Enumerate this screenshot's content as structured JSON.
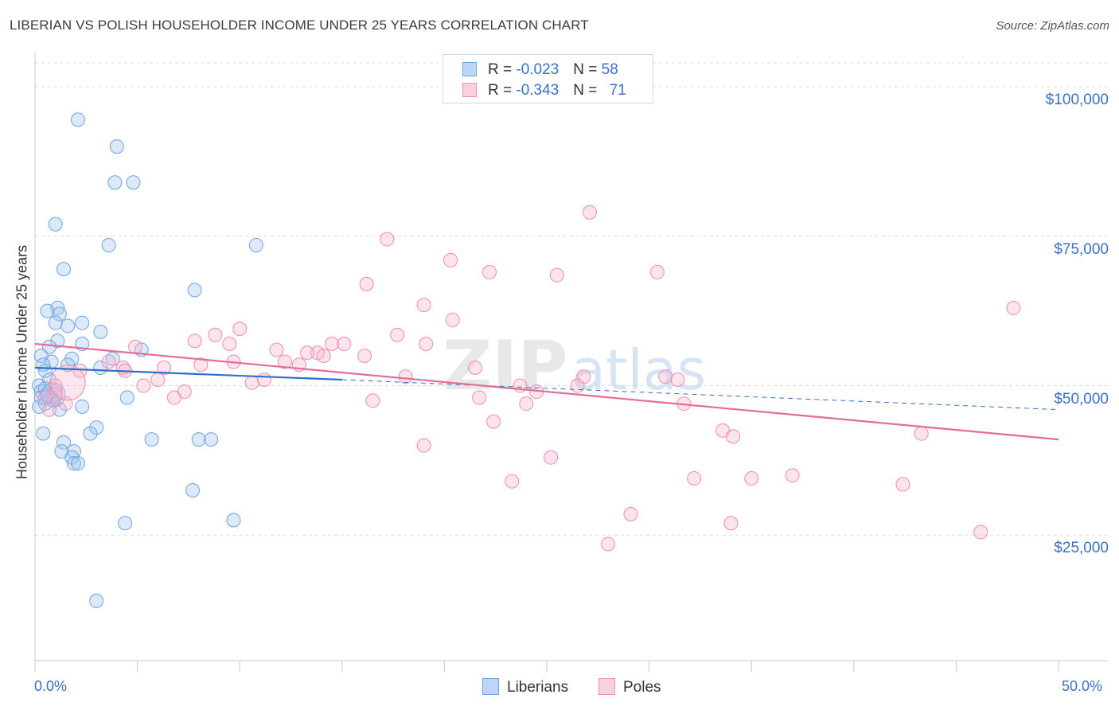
{
  "title": "LIBERIAN VS POLISH HOUSEHOLDER INCOME UNDER 25 YEARS CORRELATION CHART",
  "source": "Source: ZipAtlas.com",
  "watermark": {
    "zip": "ZIP",
    "atlas": "atlas"
  },
  "legend": {
    "row1": {
      "r_label": "R = ",
      "r_value": "-0.023",
      "n_label": "N = ",
      "n_value": "58"
    },
    "row2": {
      "r_label": "R = ",
      "r_value": "-0.343",
      "n_label": "N = ",
      "n_value": "71"
    }
  },
  "colors": {
    "liberians": "#6fa3e6",
    "poles": "#f08cb0",
    "liberians_line": "#2d6fcc",
    "poles_line": "#e46b98",
    "axis_text": "#3a72c8"
  },
  "chart_data": {
    "type": "scatter",
    "title": "LIBERIAN VS POLISH HOUSEHOLDER INCOME UNDER 25 YEARS CORRELATION CHART",
    "xlabel": "",
    "ylabel": "Householder Income Under 25 years",
    "xlim": [
      0,
      50
    ],
    "ylim": [
      4000,
      104000
    ],
    "x_tick_labels": [
      "0.0%",
      "50.0%"
    ],
    "y_ticks": [
      25000,
      50000,
      75000,
      100000
    ],
    "y_tick_labels": [
      "$25,000",
      "$50,000",
      "$75,000",
      "$100,000"
    ],
    "grid": true,
    "legend_position": "bottom-center",
    "series": [
      {
        "name": "Liberians",
        "r": -0.023,
        "n": 58,
        "trend": {
          "x": [
            0,
            15
          ],
          "y": [
            53000,
            51000
          ],
          "dashed_extension_to": [
            50,
            46000
          ]
        },
        "points": [
          [
            2.1,
            94500
          ],
          [
            4.0,
            90000
          ],
          [
            3.9,
            84000
          ],
          [
            4.8,
            84000
          ],
          [
            1.0,
            77000
          ],
          [
            3.6,
            73500
          ],
          [
            10.8,
            73500
          ],
          [
            1.4,
            69500
          ],
          [
            7.8,
            66000
          ],
          [
            1.1,
            63000
          ],
          [
            0.6,
            62500
          ],
          [
            1.2,
            62000
          ],
          [
            1.0,
            60500
          ],
          [
            1.6,
            60000
          ],
          [
            2.3,
            60500
          ],
          [
            3.2,
            59000
          ],
          [
            1.1,
            57500
          ],
          [
            2.3,
            57000
          ],
          [
            0.7,
            56500
          ],
          [
            5.2,
            56000
          ],
          [
            0.3,
            55000
          ],
          [
            1.8,
            54500
          ],
          [
            3.8,
            54500
          ],
          [
            0.8,
            54000
          ],
          [
            0.4,
            53500
          ],
          [
            1.6,
            53500
          ],
          [
            3.2,
            53000
          ],
          [
            0.5,
            52500
          ],
          [
            0.7,
            51000
          ],
          [
            0.2,
            50000
          ],
          [
            0.3,
            49000
          ],
          [
            1.0,
            49000
          ],
          [
            0.3,
            48000
          ],
          [
            0.8,
            48000
          ],
          [
            0.5,
            47000
          ],
          [
            0.9,
            47500
          ],
          [
            0.2,
            46500
          ],
          [
            2.3,
            46500
          ],
          [
            4.5,
            48000
          ],
          [
            1.2,
            46000
          ],
          [
            0.4,
            42000
          ],
          [
            3.0,
            43000
          ],
          [
            2.7,
            42000
          ],
          [
            5.7,
            41000
          ],
          [
            8.0,
            41000
          ],
          [
            8.6,
            41000
          ],
          [
            1.4,
            40500
          ],
          [
            1.3,
            39000
          ],
          [
            1.9,
            39000
          ],
          [
            1.8,
            38000
          ],
          [
            1.9,
            37000
          ],
          [
            2.1,
            37000
          ],
          [
            7.7,
            32500
          ],
          [
            4.4,
            27000
          ],
          [
            9.7,
            27500
          ],
          [
            3.0,
            14000
          ],
          [
            0.5,
            49500
          ],
          [
            0.6,
            48500
          ]
        ]
      },
      {
        "name": "Poles",
        "r": -0.343,
        "n": 71,
        "trend": {
          "x": [
            0,
            50
          ],
          "y": [
            57000,
            41000
          ]
        },
        "points": [
          [
            27.1,
            79000
          ],
          [
            17.2,
            74500
          ],
          [
            20.3,
            71000
          ],
          [
            22.2,
            69000
          ],
          [
            25.5,
            68500
          ],
          [
            30.4,
            69000
          ],
          [
            16.2,
            67000
          ],
          [
            19.0,
            63500
          ],
          [
            47.8,
            63000
          ],
          [
            20.4,
            61000
          ],
          [
            10.0,
            59500
          ],
          [
            8.8,
            58500
          ],
          [
            17.7,
            58500
          ],
          [
            7.8,
            57500
          ],
          [
            9.5,
            57000
          ],
          [
            15.1,
            57000
          ],
          [
            19.1,
            57000
          ],
          [
            4.9,
            56500
          ],
          [
            11.8,
            56000
          ],
          [
            14.5,
            57000
          ],
          [
            13.8,
            55500
          ],
          [
            14.1,
            55000
          ],
          [
            16.1,
            55000
          ],
          [
            13.3,
            55500
          ],
          [
            3.6,
            54000
          ],
          [
            9.7,
            54000
          ],
          [
            12.2,
            54000
          ],
          [
            8.1,
            53500
          ],
          [
            12.9,
            53500
          ],
          [
            6.3,
            53000
          ],
          [
            4.3,
            53000
          ],
          [
            21.5,
            53000
          ],
          [
            2.2,
            52500
          ],
          [
            4.4,
            52500
          ],
          [
            18.1,
            51500
          ],
          [
            6.0,
            51000
          ],
          [
            10.6,
            50500
          ],
          [
            11.2,
            51000
          ],
          [
            26.8,
            51500
          ],
          [
            30.8,
            51500
          ],
          [
            31.4,
            51000
          ],
          [
            1.0,
            50000
          ],
          [
            5.3,
            50000
          ],
          [
            23.7,
            50000
          ],
          [
            26.5,
            50000
          ],
          [
            24.5,
            49000
          ],
          [
            7.3,
            49000
          ],
          [
            1.0,
            48500
          ],
          [
            0.5,
            48000
          ],
          [
            6.8,
            48000
          ],
          [
            16.5,
            47500
          ],
          [
            21.7,
            48000
          ],
          [
            24.0,
            47000
          ],
          [
            31.7,
            47000
          ],
          [
            22.4,
            44000
          ],
          [
            33.6,
            42500
          ],
          [
            34.1,
            41500
          ],
          [
            43.3,
            42000
          ],
          [
            19.0,
            40000
          ],
          [
            25.2,
            38000
          ],
          [
            32.2,
            34500
          ],
          [
            35.0,
            34500
          ],
          [
            37.0,
            35000
          ],
          [
            23.3,
            34000
          ],
          [
            42.4,
            33500
          ],
          [
            29.1,
            28500
          ],
          [
            34.0,
            27000
          ],
          [
            28.0,
            23500
          ],
          [
            46.2,
            25500
          ],
          [
            0.7,
            46000
          ],
          [
            1.5,
            47000
          ]
        ]
      }
    ]
  }
}
